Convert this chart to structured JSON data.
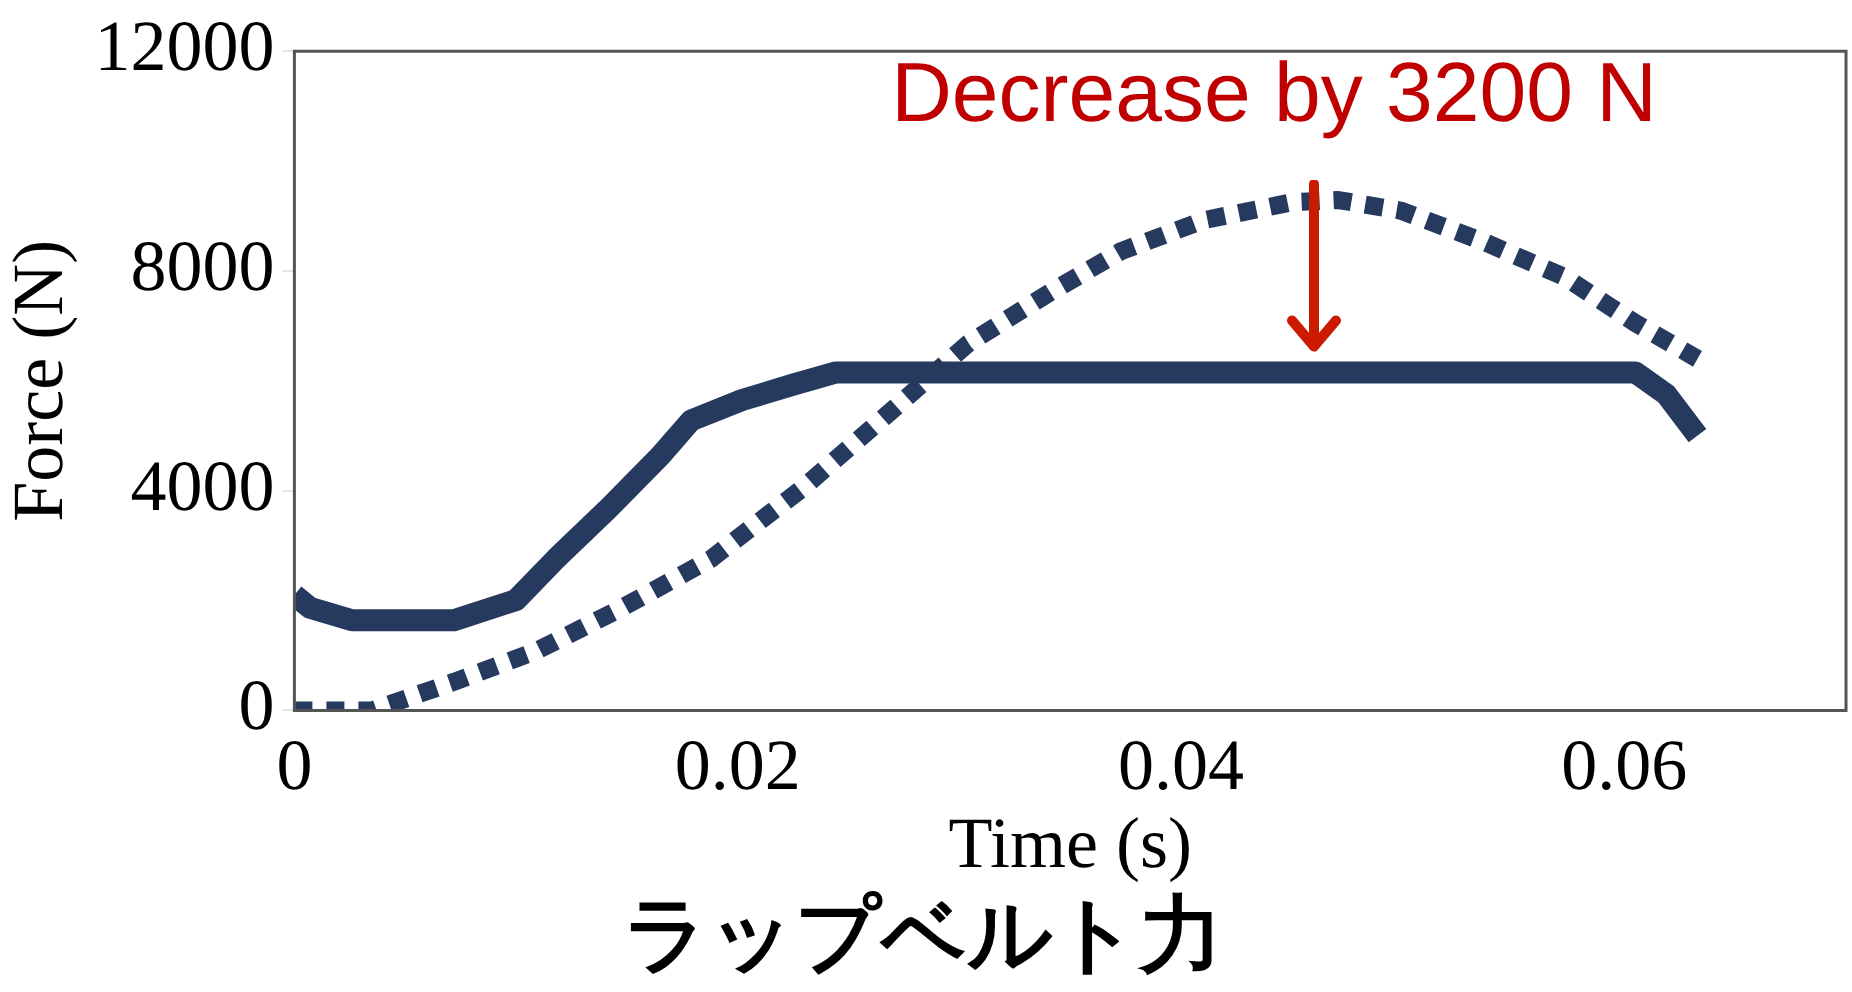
{
  "chart_data": {
    "type": "line",
    "title": "ラップベルト力",
    "xlabel": "Time (s)",
    "ylabel": "Force (N)",
    "xlim": [
      0,
      0.07
    ],
    "xticks": [
      0,
      0.02,
      0.04,
      0.06
    ],
    "ylim": [
      0,
      12000
    ],
    "yticks": [
      0,
      4000,
      8000,
      12000
    ],
    "grid": false,
    "legend": false,
    "marker": "none",
    "annotations": [
      {
        "text": "Decrease by 3200 N",
        "x": 0.046,
        "y": 6150
      }
    ],
    "series": [
      {
        "color": "#253a5e",
        "line_style": "solid",
        "x": [
          0,
          0.0007,
          0.0026,
          0.0072,
          0.01,
          0.0118,
          0.0142,
          0.0165,
          0.0179,
          0.0202,
          0.0225,
          0.0244,
          0.03,
          0.04,
          0.05,
          0.0605,
          0.0619,
          0.0633
        ],
        "values": [
          2100,
          1870,
          1640,
          1640,
          2010,
          2760,
          3690,
          4630,
          5280,
          5650,
          5930,
          6150,
          6150,
          6150,
          6150,
          6150,
          5750,
          5000
        ]
      },
      {
        "color": "#253a5e",
        "line_style": "dashed",
        "x": [
          0,
          0.0035,
          0.0072,
          0.0109,
          0.0146,
          0.0188,
          0.023,
          0.0267,
          0.0304,
          0.0341,
          0.0373,
          0.041,
          0.045,
          0.0471,
          0.0499,
          0.0536,
          0.0573,
          0.0605,
          0.0633
        ],
        "values": [
          0,
          0,
          520,
          1080,
          1830,
          2760,
          4070,
          5370,
          6680,
          7610,
          8360,
          8920,
          9250,
          9290,
          9100,
          8540,
          7890,
          7050,
          6400
        ]
      }
    ]
  }
}
